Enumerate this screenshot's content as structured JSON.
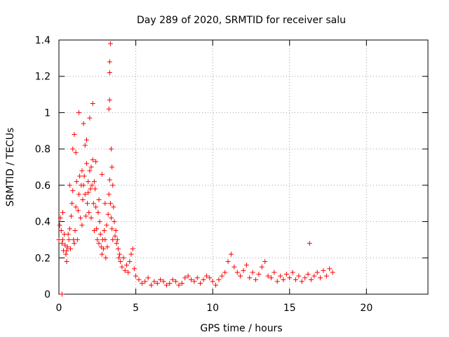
{
  "chart_data": {
    "type": "scatter",
    "title": "Day 289 of 2020, SRMTID for receiver salu",
    "xlabel": "GPS time / hours",
    "ylabel": "SRMTID / TECUs",
    "xlim": [
      0,
      24
    ],
    "ylim": [
      0,
      1.4
    ],
    "xticks": [
      "0",
      "5",
      "10",
      "15",
      "20"
    ],
    "yticks": [
      "0",
      "0.2",
      "0.4",
      "0.6",
      "0.8",
      "1",
      "1.2",
      "1.4"
    ],
    "grid": true,
    "marker": "+",
    "series_color": "#ff0000",
    "series": [
      {
        "name": "SRMTID",
        "x": [
          0.0,
          0.05,
          0.1,
          0.15,
          0.2,
          0.25,
          0.3,
          0.35,
          0.4,
          0.45,
          0.5,
          0.55,
          0.6,
          0.65,
          0.7,
          0.75,
          0.8,
          0.85,
          0.9,
          0.95,
          1.0,
          1.05,
          1.1,
          1.15,
          1.2,
          1.25,
          1.3,
          1.35,
          1.4,
          1.45,
          1.5,
          1.55,
          1.6,
          1.65,
          1.7,
          1.75,
          1.8,
          1.85,
          1.9,
          1.95,
          2.0,
          2.05,
          2.1,
          2.15,
          2.2,
          2.25,
          2.3,
          2.35,
          2.4,
          2.45,
          2.5,
          2.55,
          2.6,
          2.65,
          2.7,
          2.75,
          2.8,
          2.85,
          2.9,
          2.95,
          3.0,
          3.05,
          3.1,
          3.15,
          3.2,
          3.25,
          3.3,
          3.35,
          3.4,
          3.45,
          3.5,
          3.55,
          3.6,
          3.65,
          3.7,
          3.75,
          3.8,
          3.85,
          3.9,
          3.95,
          4.0,
          4.1,
          4.2,
          4.3,
          4.4,
          4.5,
          4.6,
          4.7,
          4.8,
          4.9,
          5.0,
          5.2,
          5.4,
          5.6,
          5.8,
          6.0,
          6.2,
          6.4,
          6.6,
          6.8,
          7.0,
          7.2,
          7.4,
          7.6,
          7.8,
          8.0,
          8.2,
          8.4,
          8.6,
          8.8,
          9.0,
          9.2,
          9.4,
          9.6,
          9.8,
          10.0,
          10.2,
          10.4,
          10.6,
          10.8,
          11.0,
          11.2,
          11.4,
          11.6,
          11.8,
          12.0,
          12.2,
          12.4,
          12.6,
          12.8,
          13.0,
          13.2,
          13.4,
          13.6,
          13.8,
          14.0,
          14.2,
          14.4,
          14.6,
          14.8,
          15.0,
          15.2,
          15.4,
          15.6,
          15.8,
          16.0,
          16.2,
          16.4,
          16.6,
          16.8,
          17.0,
          17.2,
          17.4,
          17.6,
          17.8,
          0.2,
          0.9,
          1.0,
          1.3,
          1.6,
          1.8,
          2.0,
          2.2,
          2.4,
          3.25,
          3.3,
          3.3,
          3.3,
          3.35,
          16.3,
          0.25,
          0.5,
          0.7,
          1.1,
          1.5,
          1.7,
          1.9,
          2.1,
          2.3,
          2.6,
          2.8,
          3.0,
          3.4,
          3.45,
          3.5
        ],
        "y": [
          0.3,
          0.38,
          0.42,
          0.35,
          0.28,
          0.3,
          0.24,
          0.33,
          0.27,
          0.22,
          0.18,
          0.26,
          0.33,
          0.3,
          0.36,
          0.25,
          0.43,
          0.5,
          0.57,
          0.3,
          0.28,
          0.35,
          0.48,
          0.62,
          0.3,
          0.46,
          0.55,
          0.65,
          0.42,
          0.6,
          0.38,
          0.52,
          0.6,
          0.65,
          0.55,
          0.43,
          0.72,
          0.5,
          0.62,
          0.45,
          0.68,
          0.58,
          0.42,
          0.6,
          0.74,
          0.5,
          0.35,
          0.58,
          0.48,
          0.36,
          0.3,
          0.45,
          0.28,
          0.4,
          0.33,
          0.26,
          0.22,
          0.3,
          0.25,
          0.35,
          0.3,
          0.2,
          0.38,
          0.26,
          0.44,
          0.55,
          0.63,
          0.5,
          0.42,
          0.36,
          0.3,
          0.48,
          0.4,
          0.32,
          0.35,
          0.28,
          0.3,
          0.25,
          0.2,
          0.22,
          0.18,
          0.15,
          0.2,
          0.13,
          0.16,
          0.12,
          0.18,
          0.22,
          0.25,
          0.14,
          0.1,
          0.08,
          0.06,
          0.07,
          0.09,
          0.05,
          0.07,
          0.06,
          0.08,
          0.07,
          0.05,
          0.06,
          0.08,
          0.07,
          0.05,
          0.06,
          0.09,
          0.1,
          0.08,
          0.07,
          0.09,
          0.06,
          0.08,
          0.1,
          0.09,
          0.07,
          0.05,
          0.08,
          0.1,
          0.12,
          0.18,
          0.22,
          0.15,
          0.12,
          0.1,
          0.13,
          0.16,
          0.09,
          0.12,
          0.08,
          0.11,
          0.15,
          0.18,
          0.1,
          0.09,
          0.12,
          0.07,
          0.1,
          0.08,
          0.11,
          0.09,
          0.12,
          0.08,
          0.1,
          0.07,
          0.09,
          0.11,
          0.08,
          0.1,
          0.12,
          0.09,
          0.13,
          0.1,
          0.14,
          0.12,
          0.0,
          0.8,
          0.88,
          1.0,
          0.94,
          0.85,
          0.97,
          1.05,
          0.73,
          1.02,
          1.07,
          1.22,
          1.28,
          1.38,
          0.28,
          0.45,
          0.24,
          0.6,
          0.78,
          0.68,
          0.82,
          0.56,
          0.7,
          0.62,
          0.52,
          0.66,
          0.5,
          0.8,
          0.7,
          0.6
        ]
      }
    ]
  }
}
